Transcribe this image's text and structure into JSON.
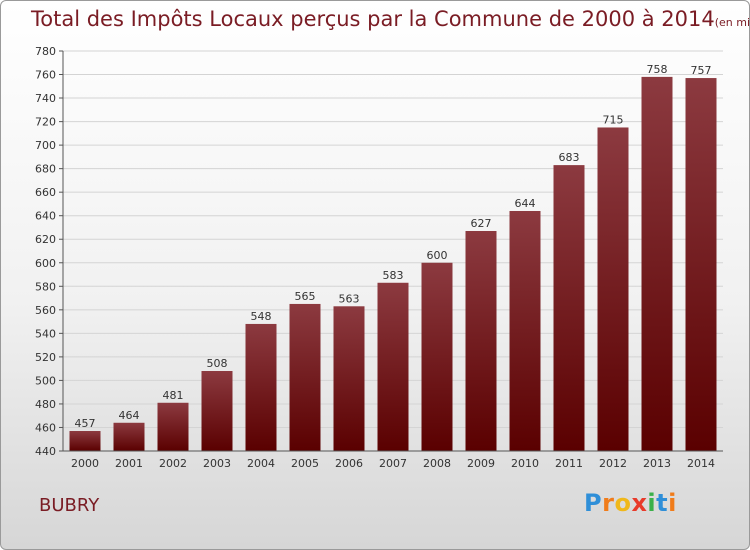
{
  "chart_data": {
    "type": "bar",
    "title": "Total des Impôts Locaux perçus par la Commune de 2000 à 2014",
    "unit": "(en milliers d'€)",
    "categories": [
      "2000",
      "2001",
      "2002",
      "2003",
      "2004",
      "2005",
      "2006",
      "2007",
      "2008",
      "2009",
      "2010",
      "2011",
      "2012",
      "2013",
      "2014"
    ],
    "values": [
      457,
      464,
      481,
      508,
      548,
      565,
      563,
      583,
      600,
      627,
      644,
      683,
      715,
      758,
      757
    ],
    "ylim": [
      440,
      780
    ],
    "yticks": [
      440,
      460,
      480,
      500,
      520,
      540,
      560,
      580,
      600,
      620,
      640,
      660,
      680,
      700,
      720,
      740,
      760,
      780
    ],
    "xlabel": "",
    "ylabel": "",
    "grid": "horizontal",
    "bar_color": "#7a1c24"
  },
  "commune": "BUBRY",
  "logo": {
    "letters": [
      "P",
      "r",
      "o",
      "x",
      "i",
      "t",
      "i"
    ],
    "colors": [
      "#2f8fd8",
      "#f07c1a",
      "#f0b81a",
      "#e83a2a",
      "#3bb04a",
      "#2f8fd8",
      "#f07c1a"
    ]
  }
}
